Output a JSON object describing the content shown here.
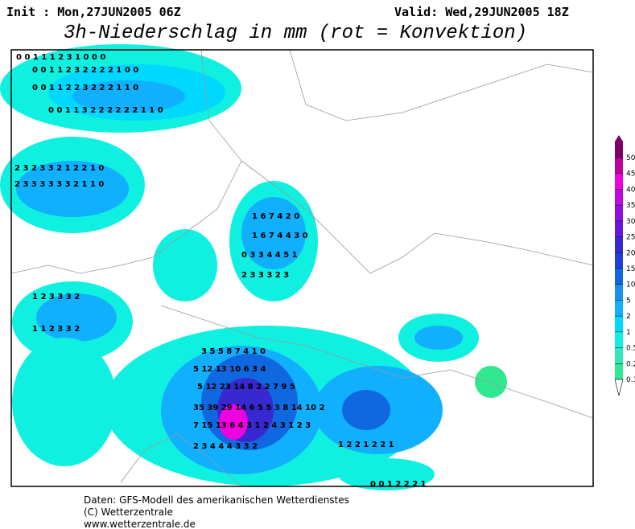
{
  "header": {
    "init": "Init : Mon,27JUN2005 06Z",
    "valid": "Valid: Wed,29JUN2005 18Z",
    "title": "3h-Niederschlag in mm (rot = Konvektion)"
  },
  "legend": {
    "levels": [
      0.1,
      0.2,
      0.5,
      1,
      2,
      5,
      10,
      15,
      20,
      25,
      30,
      35,
      40,
      45,
      50
    ],
    "colors": [
      "#30e890",
      "#30e8b8",
      "#10f0e0",
      "#00d8ff",
      "#10b0ff",
      "#1890f0",
      "#1068e0",
      "#2040d8",
      "#3828d0",
      "#6818d8",
      "#9010e0",
      "#c008e0",
      "#f000e0",
      "#c00098",
      "#800068"
    ]
  },
  "map_labels": [
    "0 0 1 1 1 2 3 1 0 0 0",
    "0 0 1 1 2 3 2 2 2 2 1 0 0",
    "0 0 1 1 2 2 3 2 2 2 1 1 0",
    "0 0 1 1 3 2 2 2 2 2 2 1 1 0",
    "2 3 2 3 3 2 1 2 2 1 0",
    "2 3 3 3 3 3 3 2 1 1 0",
    "1 6 7 4 2 0",
    "1 6 7 4 4 3 0",
    "0 3 3 4 4 5 1",
    "2 3 3 3 2 3",
    "1 2 3 3 3 2",
    "1 1 2 3 3 2",
    "3 5 5 8 7 4 1 0",
    "5 12 13 10 6 3 4",
    "5 12 23 14 8 2 2 7 9 5",
    "35 39 29 14 6 5 5 3 8 14 10 2",
    "7 15 13 6 4 3 1 2 4 3 1 2 3",
    "2 3 4 4 4 3 3 2",
    "1 2 2 1 2 2 1",
    "0 0 1 2 2 2 1"
  ],
  "footer": [
    "Daten: GFS-Modell des amerikanischen Wetterdienstes",
    "(C) Wetterzentrale",
    "www.wetterzentrale.de"
  ]
}
